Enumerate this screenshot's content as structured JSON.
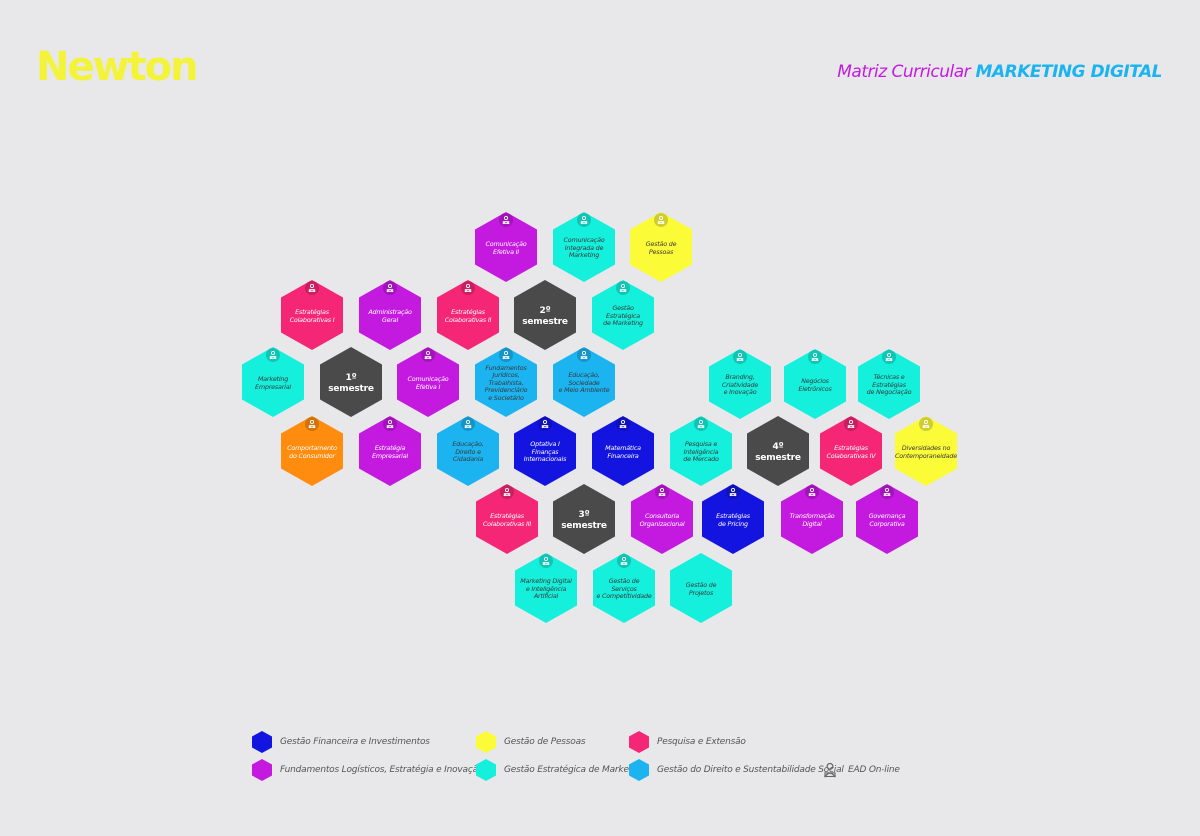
{
  "header": {
    "logo": "Newton",
    "title_part1": "Matriz Curricular",
    "title_part2": "MARKETING DIGITAL"
  },
  "colors": {
    "financeira": "#1414e0",
    "pessoas": "#fbfb38",
    "pesquisa": "#f42675",
    "logisticos": "#c41ae0",
    "marketing": "#14f0dc",
    "direito": "#1bb4f0",
    "semestre": "#4a4a4a",
    "comportamento": "#ff8c0e"
  },
  "semesters": [
    {
      "id": "s1",
      "label": "1º semestre"
    },
    {
      "id": "s2",
      "label": "2º semestre"
    },
    {
      "id": "s3",
      "label": "3º semestre"
    },
    {
      "id": "s4",
      "label": "4º semestre"
    }
  ],
  "courses": [
    {
      "id": "c-com2",
      "label": "Comunicação\nEfetiva II",
      "category": "logisticos",
      "ead": true
    },
    {
      "id": "c-cim",
      "label": "Comunicação\nIntegrada de\nMarketing",
      "category": "marketing",
      "ead": true
    },
    {
      "id": "c-gpes",
      "label": "Gestão de\nPessoas",
      "category": "pessoas",
      "ead": true
    },
    {
      "id": "c-ec1",
      "label": "Estratégias\nColaborativas I",
      "category": "pesquisa",
      "ead": true
    },
    {
      "id": "c-adm",
      "label": "Administração Geral",
      "category": "logisticos",
      "ead": true
    },
    {
      "id": "c-ec2",
      "label": "Estratégias\nColaborativas II",
      "category": "pesquisa",
      "ead": true
    },
    {
      "id": "c-gem",
      "label": "Gestão Estratégica\nde Marketing",
      "category": "marketing",
      "ead": true
    },
    {
      "id": "c-mkt",
      "label": "Marketing\nEmpresarial",
      "category": "marketing",
      "ead": true
    },
    {
      "id": "c-com1",
      "label": "Comunicação\nEfetiva I",
      "category": "logisticos",
      "ead": true
    },
    {
      "id": "c-fund",
      "label": "Fundamentos\nJurídicos,\nTrabalhista,\nPrevidenciário\ne Societário",
      "category": "direito",
      "ead": true
    },
    {
      "id": "c-esma",
      "label": "Educação, Sociedade\ne Meio Ambiente",
      "category": "direito",
      "ead": true
    },
    {
      "id": "c-brand",
      "label": "Branding,\nCriatividade\ne Inovação",
      "category": "marketing",
      "ead": true
    },
    {
      "id": "c-neg",
      "label": "Negócios\nEletrônicos",
      "category": "marketing",
      "ead": true
    },
    {
      "id": "c-tec",
      "label": "Técnicas e\nEstratégias\nde Negociação",
      "category": "marketing",
      "ead": true
    },
    {
      "id": "c-comp",
      "label": "Comportamento\ndo Consumidor",
      "category": "comportamento",
      "ead": true
    },
    {
      "id": "c-estr",
      "label": "Estratégia\nEmpresarial",
      "category": "logisticos",
      "ead": true
    },
    {
      "id": "c-edc",
      "label": "Educação,\nDireito e\nCidadania",
      "category": "direito",
      "ead": true
    },
    {
      "id": "c-opt",
      "label": "Optativa I\nFinanças\nInternacionais",
      "category": "financeira",
      "ead": true
    },
    {
      "id": "c-mat",
      "label": "Matemática\nFinanceira",
      "category": "financeira",
      "ead": true
    },
    {
      "id": "c-pim",
      "label": "Pesquisa e\nInteligência\nde Mercado",
      "category": "marketing",
      "ead": true
    },
    {
      "id": "c-ec4",
      "label": "Estratégias\nColaborativas IV",
      "category": "pesquisa",
      "ead": true
    },
    {
      "id": "c-div",
      "label": "Diversidades no\nContemporaneidade",
      "category": "pessoas",
      "ead": true
    },
    {
      "id": "c-ec3",
      "label": "Estratégias\nColaborativas III",
      "category": "pesquisa",
      "ead": true
    },
    {
      "id": "c-cons",
      "label": "Consultoria\nOrganizacional",
      "category": "logisticos",
      "ead": true
    },
    {
      "id": "c-pric",
      "label": "Estratégias\nde Pricing",
      "category": "financeira",
      "ead": true
    },
    {
      "id": "c-trans",
      "label": "Transformação\nDigital",
      "category": "logisticos",
      "ead": true
    },
    {
      "id": "c-gov",
      "label": "Governança\nCorporativa",
      "category": "logisticos",
      "ead": true
    },
    {
      "id": "c-mdi",
      "label": "Marketing Digital\ne Inteligência\nArtificial",
      "category": "marketing",
      "ead": true
    },
    {
      "id": "c-gsc",
      "label": "Gestão de Serviços\ne Competitividade",
      "category": "marketing",
      "ead": true
    },
    {
      "id": "c-gproj",
      "label": "Gestão de\nProjetos",
      "category": "marketing",
      "ead": false
    }
  ],
  "legend": [
    {
      "id": "financeira",
      "label": "Gestão Financeira e Investimentos"
    },
    {
      "id": "pessoas",
      "label": "Gestão de Pessoas"
    },
    {
      "id": "pesquisa",
      "label": "Pesquisa e Extensão"
    },
    {
      "id": "logisticos",
      "label": "Fundamentos Logísticos, Estratégia e Inovação"
    },
    {
      "id": "marketing",
      "label": "Gestão Estratégica de Marketing"
    },
    {
      "id": "direito",
      "label": "Gestão do Direito e Sustentabilidade Social"
    },
    {
      "id": "ead",
      "label": "EAD On-line",
      "icon": "person-computer-icon"
    }
  ]
}
